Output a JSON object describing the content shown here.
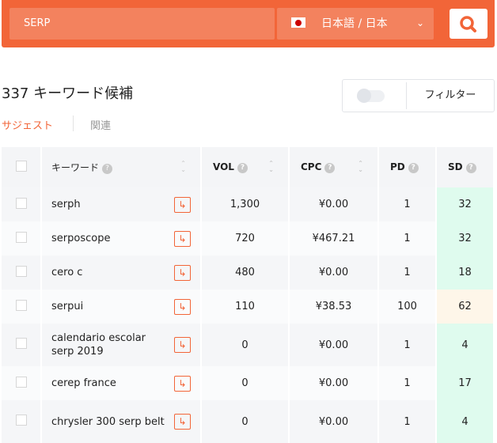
{
  "search": {
    "query": "SERP",
    "language": "日本語 / 日本",
    "colors": {
      "brand": "#f26538"
    }
  },
  "heading": "337 キーワード候補",
  "tabs": [
    {
      "label": "サジェスト",
      "active": true
    },
    {
      "label": "関連",
      "active": false
    }
  ],
  "filter": {
    "label": "フィルター",
    "toggle_on": false
  },
  "table": {
    "headers": {
      "keyword": "キーワード",
      "vol": "VOL",
      "cpc": "CPC",
      "pd": "PD",
      "sd": "SD"
    },
    "rows": [
      {
        "keyword": "serph",
        "vol": "1,300",
        "cpc": "¥0.00",
        "pd": "1",
        "sd": "32"
      },
      {
        "keyword": "serposcope",
        "vol": "720",
        "cpc": "¥467.21",
        "pd": "1",
        "sd": "32"
      },
      {
        "keyword": "cero c",
        "vol": "480",
        "cpc": "¥0.00",
        "pd": "1",
        "sd": "18"
      },
      {
        "keyword": "serpui",
        "vol": "110",
        "cpc": "¥38.53",
        "pd": "100",
        "sd": "62"
      },
      {
        "keyword": "calendario escolar serp 2019",
        "vol": "0",
        "cpc": "¥0.00",
        "pd": "1",
        "sd": "4"
      },
      {
        "keyword": "cerep france",
        "vol": "0",
        "cpc": "¥0.00",
        "pd": "1",
        "sd": "17"
      },
      {
        "keyword": "chrysler 300 serp belt",
        "vol": "0",
        "cpc": "¥0.00",
        "pd": "1",
        "sd": "4"
      }
    ]
  }
}
